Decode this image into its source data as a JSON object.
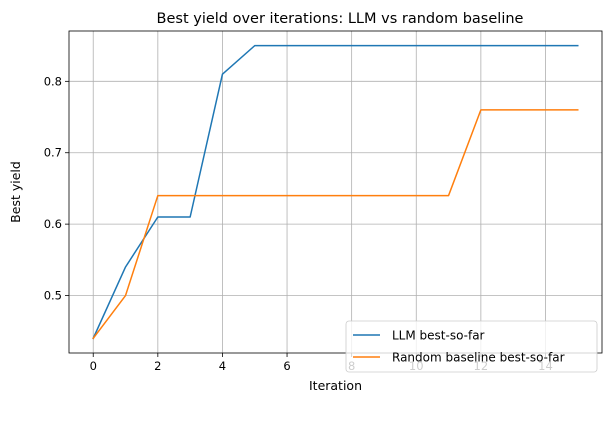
{
  "chart_data": {
    "type": "line",
    "title": "Best yield over iterations: LLM vs random baseline",
    "xlabel": "Iteration",
    "ylabel": "Best yield",
    "x": [
      0,
      1,
      2,
      3,
      4,
      5,
      6,
      7,
      8,
      9,
      10,
      11,
      12,
      13,
      14,
      15
    ],
    "xlim": [
      -0.75,
      15.75
    ],
    "ylim": [
      0.4195,
      0.8705
    ],
    "xticks": [
      0,
      2,
      4,
      6,
      8,
      10,
      12,
      14
    ],
    "yticks": [
      0.5,
      0.6,
      0.7,
      0.8
    ],
    "xtick_labels": [
      "0",
      "2",
      "4",
      "6",
      "8",
      "10",
      "12",
      "14"
    ],
    "ytick_labels": [
      "0.5",
      "0.6",
      "0.7",
      "0.8"
    ],
    "grid": true,
    "legend_position": "lower-right",
    "series": [
      {
        "name": "LLM best-so-far",
        "color": "#1f77b4",
        "values": [
          0.44,
          0.54,
          0.61,
          0.61,
          0.81,
          0.85,
          0.85,
          0.85,
          0.85,
          0.85,
          0.85,
          0.85,
          0.85,
          0.85,
          0.85,
          0.85
        ]
      },
      {
        "name": "Random baseline best-so-far",
        "color": "#ff7f0e",
        "values": [
          0.44,
          0.5,
          0.64,
          0.64,
          0.64,
          0.64,
          0.64,
          0.64,
          0.64,
          0.64,
          0.64,
          0.64,
          0.76,
          0.76,
          0.76,
          0.76
        ]
      }
    ]
  }
}
